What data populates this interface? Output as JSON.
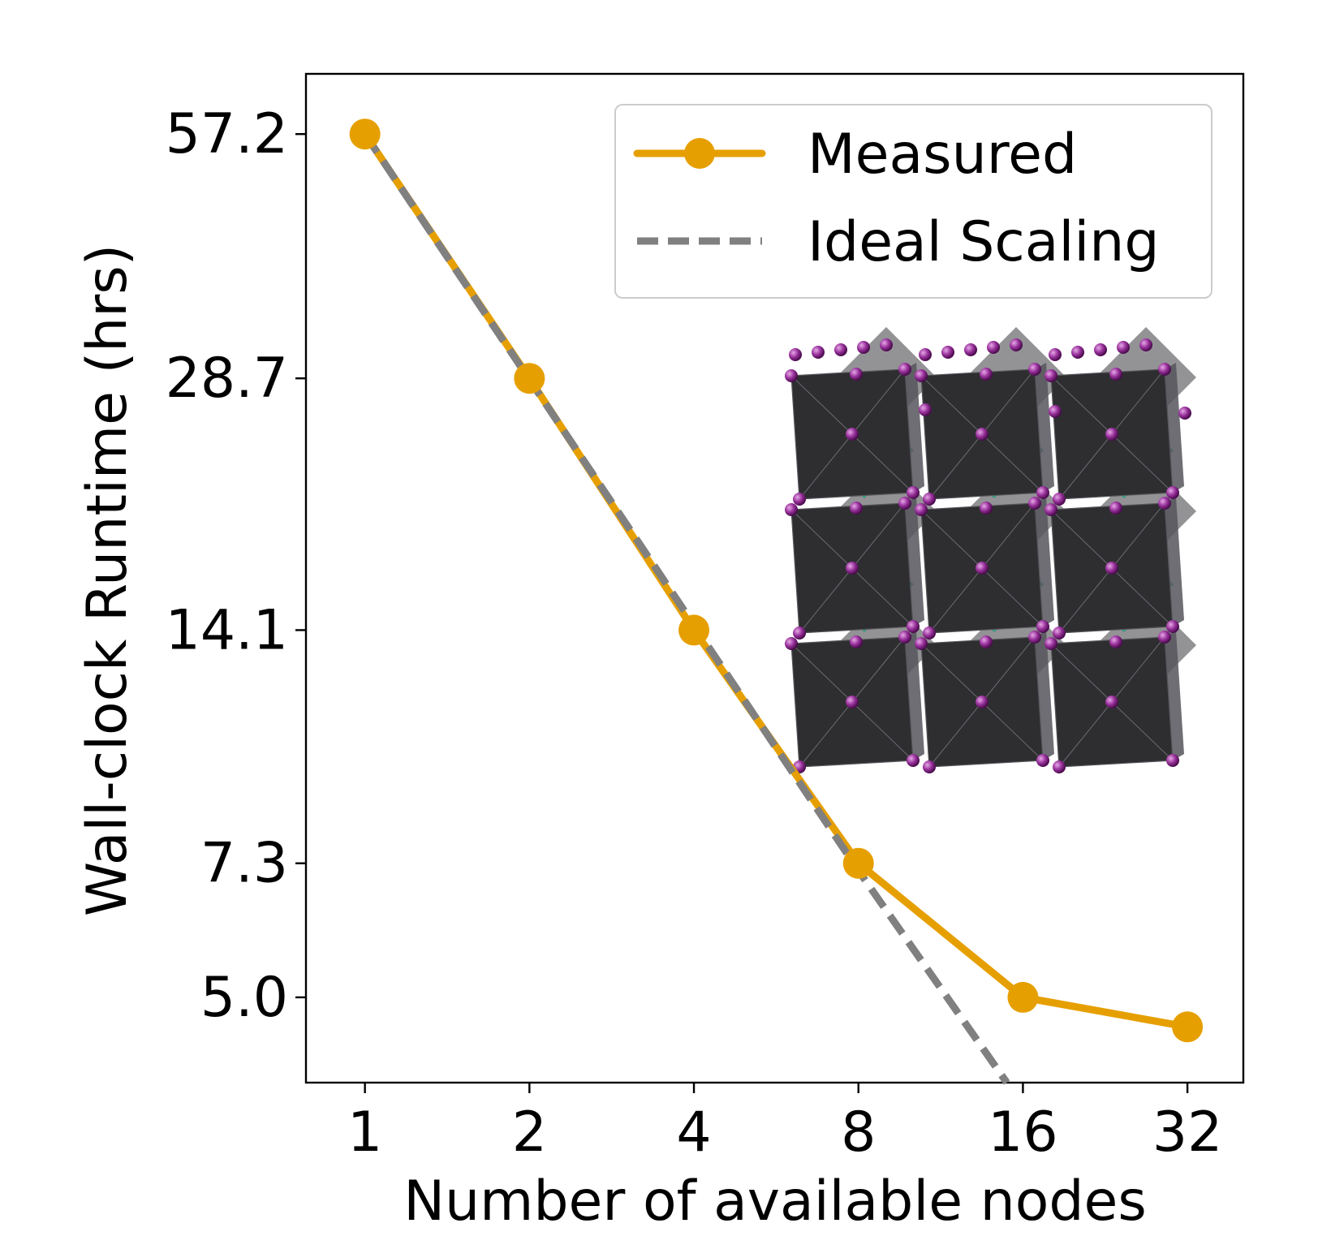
{
  "chart_data": {
    "type": "line",
    "xscale": "log2",
    "yscale": "log",
    "x": [
      1,
      2,
      4,
      8,
      16,
      32
    ],
    "x_tick_labels": [
      "1",
      "2",
      "4",
      "8",
      "16",
      "32"
    ],
    "y_ticks": [
      57.2,
      28.7,
      14.1,
      7.3,
      5.0
    ],
    "y_tick_labels": [
      "57.2",
      "28.7",
      "14.1",
      "7.3",
      "5.0"
    ],
    "xlim": [
      0.78,
      40.5
    ],
    "ylim": [
      3.93,
      67.8
    ],
    "series": [
      {
        "name": "Measured",
        "style": "solid-markers",
        "color": "#E69F00",
        "values": [
          57.2,
          28.7,
          14.1,
          7.3,
          5.0,
          4.6
        ]
      },
      {
        "name": "Ideal Scaling",
        "style": "dashed",
        "color": "#808080",
        "x": [
          1,
          2,
          4,
          8,
          14.95
        ],
        "values": [
          57.2,
          28.6,
          14.3,
          7.15,
          3.93
        ]
      }
    ],
    "xlabel": "Number of available nodes",
    "ylabel": "Wall-clock Runtime (hrs)",
    "legend": {
      "position": "top-right",
      "entries": [
        "Measured",
        "Ideal Scaling"
      ]
    },
    "inset": "crystal-structure-illustration",
    "grid": false
  },
  "colors": {
    "measured": "#E69F00",
    "ideal": "#808080",
    "octa_dark": "#2E2E31",
    "octa_teal": "#2FCFA6",
    "atom": "#8B1E8B"
  }
}
